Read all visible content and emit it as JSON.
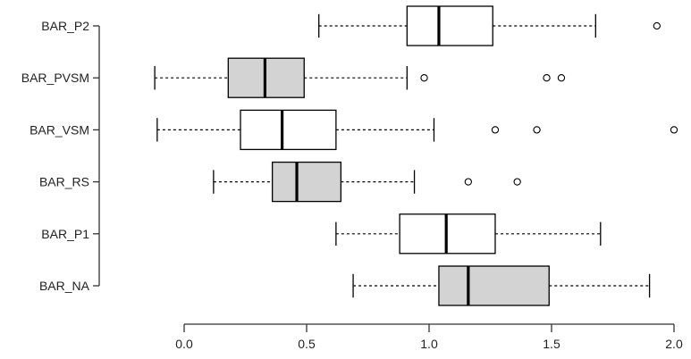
{
  "chart_data": {
    "type": "boxplot",
    "orientation": "horizontal",
    "title": "",
    "xlabel": "",
    "ylabel": "",
    "xlim": [
      0.0,
      2.0
    ],
    "xticks": [
      0.0,
      0.5,
      1.0,
      1.5,
      2.0
    ],
    "xtick_labels": [
      "0.0",
      "0.5",
      "1.0",
      "1.5",
      "2.0"
    ],
    "grid": false,
    "colors": {
      "white_fill": "#ffffff",
      "gray_fill": "#d3d3d3",
      "stroke": "#000000",
      "axis": "#333333"
    },
    "categories": [
      "BAR_P2",
      "BAR_PVSM",
      "BAR_VSM",
      "BAR_RS",
      "BAR_P1",
      "BAR_NA"
    ],
    "boxes": [
      {
        "name": "BAR_P2",
        "fill": "white",
        "whisker_low": 0.55,
        "q1": 0.91,
        "median": 1.04,
        "q3": 1.26,
        "whisker_high": 1.68,
        "outliers": [
          1.93
        ]
      },
      {
        "name": "BAR_PVSM",
        "fill": "gray",
        "whisker_low": -0.12,
        "q1": 0.18,
        "median": 0.33,
        "q3": 0.49,
        "whisker_high": 0.91,
        "outliers": [
          0.98,
          1.48,
          1.54
        ]
      },
      {
        "name": "BAR_VSM",
        "fill": "white",
        "whisker_low": -0.11,
        "q1": 0.23,
        "median": 0.4,
        "q3": 0.62,
        "whisker_high": 1.02,
        "outliers": [
          1.27,
          1.44,
          2.0
        ]
      },
      {
        "name": "BAR_RS",
        "fill": "gray",
        "whisker_low": 0.12,
        "q1": 0.36,
        "median": 0.46,
        "q3": 0.64,
        "whisker_high": 0.94,
        "outliers": [
          1.16,
          1.36
        ]
      },
      {
        "name": "BAR_P1",
        "fill": "white",
        "whisker_low": 0.62,
        "q1": 0.88,
        "median": 1.07,
        "q3": 1.27,
        "whisker_high": 1.7,
        "outliers": []
      },
      {
        "name": "BAR_NA",
        "fill": "gray",
        "whisker_low": 0.69,
        "q1": 1.04,
        "median": 1.16,
        "q3": 1.49,
        "whisker_high": 1.9,
        "outliers": []
      }
    ]
  }
}
